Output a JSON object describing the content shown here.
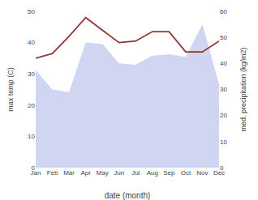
{
  "chart_data": {
    "type": "line",
    "xlabel": "date (month)",
    "ylabel": "max temp (C)",
    "y2label": "med. precipitation (kg/m2)",
    "categories": [
      "Jan",
      "Feb",
      "Mar",
      "Apr",
      "May",
      "Jun",
      "Jul",
      "Aug",
      "Sep",
      "Oct",
      "Nov",
      "Dec"
    ],
    "series": [
      {
        "type": "area",
        "axis": "y2",
        "color": "#aab4e8",
        "values": [
          37.5,
          30.0,
          29.0,
          48.0,
          47.5,
          40.0,
          39.5,
          43.0,
          43.5,
          42.5,
          55.0,
          32.0
        ]
      },
      {
        "type": "line",
        "color": "#993333",
        "values": [
          35.0,
          36.5,
          42.0,
          48.0,
          44.0,
          40.0,
          40.5,
          43.5,
          43.5,
          37.0,
          37.0,
          40.5
        ]
      }
    ],
    "ylim": [
      0,
      50
    ],
    "yticks": [
      0,
      10,
      20,
      30,
      40,
      50
    ],
    "y2lim": [
      0,
      60
    ],
    "y2ticks": [
      0,
      10,
      20,
      30,
      40,
      50,
      60
    ],
    "grid": false
  }
}
